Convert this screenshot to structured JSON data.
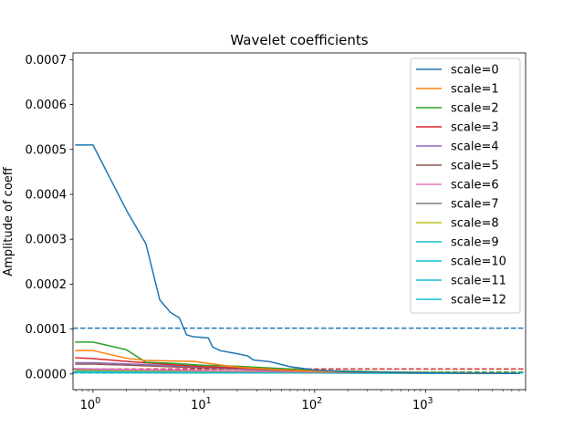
{
  "chart_data": {
    "type": "line",
    "title": "Wavelet coefficients",
    "xlabel": "",
    "ylabel": "Amplitude of coeff",
    "xscale": "log",
    "xlim": [
      0.66,
      8000
    ],
    "ylim": [
      -3.5e-05,
      0.000715
    ],
    "grid": false,
    "legend_position": "top-right",
    "x_ticks": [
      {
        "value": 1,
        "base": "10",
        "exp": "0"
      },
      {
        "value": 10,
        "base": "10",
        "exp": "1"
      },
      {
        "value": 100,
        "base": "10",
        "exp": "2"
      },
      {
        "value": 1000,
        "base": "10",
        "exp": "3"
      }
    ],
    "y_ticks": [
      {
        "value": 0.0,
        "label": "0.0000"
      },
      {
        "value": 0.0001,
        "label": "0.0001"
      },
      {
        "value": 0.0002,
        "label": "0.0002"
      },
      {
        "value": 0.0003,
        "label": "0.0003"
      },
      {
        "value": 0.0004,
        "label": "0.0004"
      },
      {
        "value": 0.0005,
        "label": "0.0005"
      },
      {
        "value": 0.0006,
        "label": "0.0006"
      },
      {
        "value": 0.0007,
        "label": "0.0007"
      }
    ],
    "series": [
      {
        "name": "scale=0",
        "color": "#1f77b4",
        "points": [
          [
            0.7,
            0.00051
          ],
          [
            1,
            0.00051
          ],
          [
            2,
            0.000365
          ],
          [
            3,
            0.00029
          ],
          [
            4,
            0.000165
          ],
          [
            5,
            0.000137
          ],
          [
            6,
            0.000125
          ],
          [
            7,
            8.7e-05
          ],
          [
            8,
            8.3e-05
          ],
          [
            9,
            8.2e-05
          ],
          [
            10,
            8.1e-05
          ],
          [
            11,
            8e-05
          ],
          [
            12,
            6e-05
          ],
          [
            14,
            5.2e-05
          ],
          [
            20,
            4.5e-05
          ],
          [
            25,
            4e-05
          ],
          [
            28,
            3.1e-05
          ],
          [
            40,
            2.7e-05
          ],
          [
            60,
            1.6e-05
          ],
          [
            80,
            1.2e-05
          ],
          [
            100,
            9e-06
          ],
          [
            200,
            5e-06
          ],
          [
            500,
            3e-06
          ],
          [
            1000,
            2e-06
          ],
          [
            7000,
            1e-06
          ]
        ]
      },
      {
        "name": "scale=1",
        "color": "#ff7f0e",
        "points": [
          [
            0.7,
            5.2e-05
          ],
          [
            1,
            5.2e-05
          ],
          [
            2,
            3.5e-05
          ],
          [
            3,
            3e-05
          ],
          [
            8,
            2.8e-05
          ],
          [
            20,
            1.5e-05
          ],
          [
            50,
            9e-06
          ],
          [
            100,
            6e-06
          ],
          [
            500,
            3e-06
          ],
          [
            7000,
            1e-06
          ]
        ]
      },
      {
        "name": "scale=2",
        "color": "#2ca02c",
        "points": [
          [
            0.7,
            7.1e-05
          ],
          [
            1,
            7.1e-05
          ],
          [
            2,
            5.4e-05
          ],
          [
            3,
            2.6e-05
          ],
          [
            5,
            2.4e-05
          ],
          [
            10,
            1.9e-05
          ],
          [
            20,
            1.7e-05
          ],
          [
            50,
            1.2e-05
          ],
          [
            100,
            8e-06
          ],
          [
            500,
            4e-06
          ],
          [
            7000,
            1e-06
          ]
        ]
      },
      {
        "name": "scale=3",
        "color": "#d62728",
        "points": [
          [
            0.7,
            3.6e-05
          ],
          [
            1,
            3.4e-05
          ],
          [
            2,
            2.8e-05
          ],
          [
            5,
            2.1e-05
          ],
          [
            10,
            1.6e-05
          ],
          [
            30,
            1.2e-05
          ],
          [
            100,
            7e-06
          ],
          [
            500,
            3e-06
          ],
          [
            7000,
            1e-06
          ]
        ]
      },
      {
        "name": "scale=4",
        "color": "#9467bd",
        "points": [
          [
            0.7,
            2.5e-05
          ],
          [
            1,
            2.5e-05
          ],
          [
            3,
            2.1e-05
          ],
          [
            10,
            1.5e-05
          ],
          [
            50,
            9e-06
          ],
          [
            200,
            5e-06
          ],
          [
            7000,
            1e-06
          ]
        ]
      },
      {
        "name": "scale=5",
        "color": "#8c564b",
        "points": [
          [
            0.7,
            2.2e-05
          ],
          [
            1,
            2.2e-05
          ],
          [
            3,
            1.8e-05
          ],
          [
            10,
            1.3e-05
          ],
          [
            50,
            8e-06
          ],
          [
            200,
            4e-06
          ],
          [
            7000,
            1e-06
          ]
        ]
      },
      {
        "name": "scale=6",
        "color": "#e377c2",
        "points": [
          [
            0.7,
            1.2e-05
          ],
          [
            2,
            1e-05
          ],
          [
            10,
            8e-06
          ],
          [
            100,
            5e-06
          ],
          [
            7000,
            1e-06
          ]
        ]
      },
      {
        "name": "scale=7",
        "color": "#7f7f7f",
        "points": [
          [
            0.7,
            1e-05
          ],
          [
            2,
            9e-06
          ],
          [
            10,
            7e-06
          ],
          [
            100,
            4e-06
          ],
          [
            7000,
            1e-06
          ]
        ]
      },
      {
        "name": "scale=8",
        "color": "#bcbd22",
        "points": [
          [
            0.7,
            8e-06
          ],
          [
            10,
            6e-06
          ],
          [
            100,
            4e-06
          ],
          [
            7000,
            1e-06
          ]
        ]
      },
      {
        "name": "scale=9",
        "color": "#17becf",
        "points": [
          [
            0.7,
            6e-06
          ],
          [
            10,
            5e-06
          ],
          [
            100,
            3e-06
          ],
          [
            7000,
            1e-06
          ]
        ]
      },
      {
        "name": "scale=10",
        "color": "#17becf",
        "points": [
          [
            0.7,
            5e-06
          ],
          [
            10,
            4e-06
          ],
          [
            100,
            3e-06
          ],
          [
            7000,
            1e-06
          ]
        ]
      },
      {
        "name": "scale=11",
        "color": "#17becf",
        "points": [
          [
            0.7,
            4e-06
          ],
          [
            10,
            3e-06
          ],
          [
            100,
            2e-06
          ],
          [
            7000,
            1e-06
          ]
        ]
      },
      {
        "name": "scale=12",
        "color": "#17becf",
        "points": [
          [
            0.7,
            3e-06
          ],
          [
            10,
            2e-06
          ],
          [
            100,
            2e-06
          ],
          [
            7000,
            1e-06
          ]
        ]
      }
    ],
    "reference_lines": [
      {
        "y": 0.000102,
        "color": "#1f77b4",
        "style": "dashed"
      },
      {
        "y": 1.1e-05,
        "color": "#d62728",
        "style": "dashed"
      },
      {
        "y": 4e-06,
        "color": "#2ca02c",
        "style": "dashed"
      },
      {
        "y": 2e-06,
        "color": "#17becf",
        "style": "dashed"
      }
    ]
  }
}
